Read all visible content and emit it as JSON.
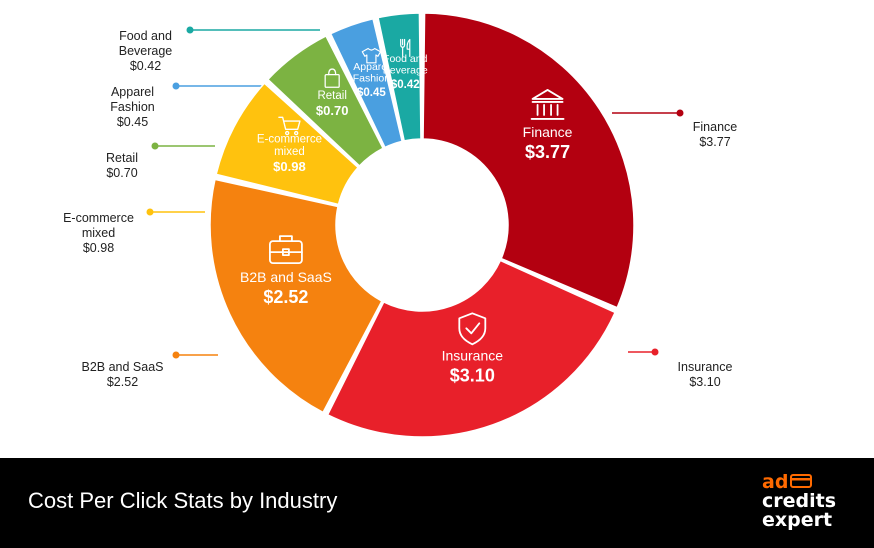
{
  "chart_data": {
    "type": "donut",
    "title": "",
    "unit_prefix": "$",
    "start_angle_deg": 0,
    "categories": [
      "Finance",
      "Insurance",
      "B2B and SaaS",
      "E-commerce mixed",
      "Retail",
      "Apparel Fashion",
      "Food and Beverage"
    ],
    "values": [
      3.77,
      3.1,
      2.52,
      0.98,
      0.7,
      0.45,
      0.42
    ],
    "slices": [
      {
        "name": "Finance",
        "label": "Finance",
        "value_label": "$3.77",
        "color": "#b30010",
        "icon": "bank-icon",
        "value": 3.77
      },
      {
        "name": "Insurance",
        "label": "Insurance",
        "value_label": "$3.10",
        "color": "#e8202a",
        "icon": "shield-check-icon",
        "value": 3.1
      },
      {
        "name": "B2B and SaaS",
        "label": "B2B and SaaS",
        "value_label": "$2.52",
        "color": "#f5820f",
        "icon": "briefcase-icon",
        "value": 2.52
      },
      {
        "name": "E-commerce mixed",
        "label": "E-commerce\nmixed",
        "value_label": "$0.98",
        "color": "#ffc20e",
        "icon": "shopping-cart-icon",
        "value": 0.98
      },
      {
        "name": "Retail",
        "label": "Retail",
        "value_label": "$0.70",
        "color": "#7cb342",
        "icon": "shopping-bag-icon",
        "value": 0.7
      },
      {
        "name": "Apparel Fashion",
        "label": "Apparel\nFashion",
        "value_label": "$0.45",
        "color": "#4a9fe0",
        "icon": "tshirt-icon",
        "value": 0.45
      },
      {
        "name": "Food and Beverage",
        "label": "Food and\nBeverage",
        "value_label": "$0.42",
        "color": "#1aa9a3",
        "icon": "fork-knife-icon",
        "value": 0.42
      }
    ],
    "external_labels": [
      {
        "name": "Finance",
        "text": "Finance",
        "value": "$3.77"
      },
      {
        "name": "Insurance",
        "text": "Insurance",
        "value": "$3.10"
      },
      {
        "name": "B2B and SaaS",
        "text": "B2B and SaaS",
        "value": "$2.52"
      },
      {
        "name": "E-commerce mixed",
        "text": "E-commerce\nmixed",
        "value": "$0.98"
      },
      {
        "name": "Retail",
        "text": "Retail",
        "value": "$0.70"
      },
      {
        "name": "Apparel Fashion",
        "text": "Apparel\nFashion",
        "value": "$0.45"
      },
      {
        "name": "Food and Beverage",
        "text": "Food and\nBeverage",
        "value": "$0.42"
      }
    ]
  },
  "caption": "Cost Per Click Stats by Industry",
  "logo": {
    "line1": "ad",
    "line2": "credits",
    "line3": "expert",
    "accent_color": "#ff6a00"
  }
}
